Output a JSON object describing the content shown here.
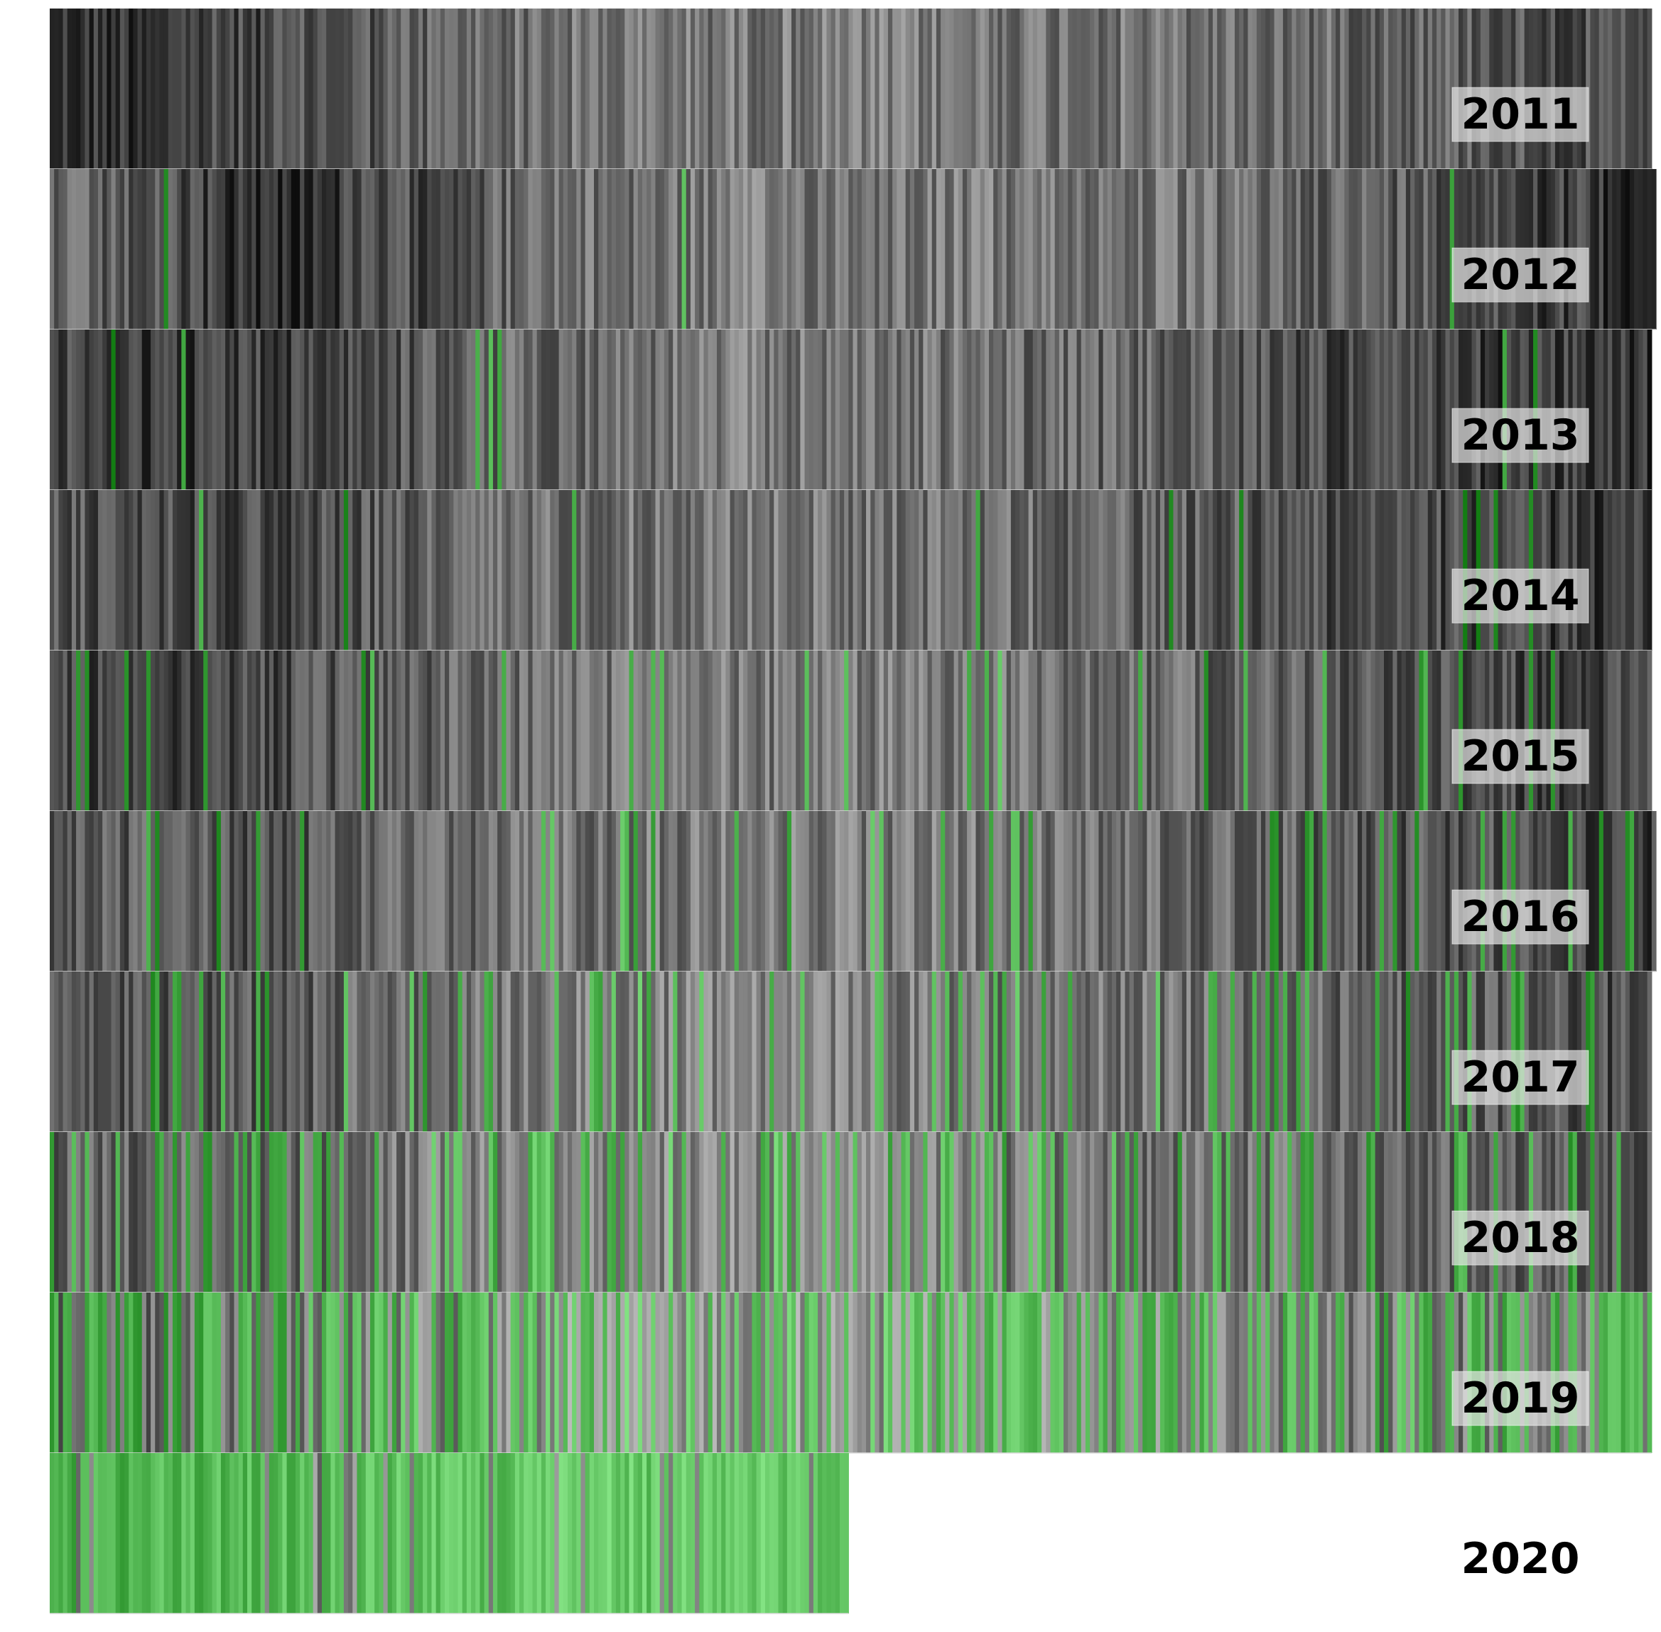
{
  "chart_data": {
    "type": "heatmap",
    "title": "",
    "xlabel": "",
    "ylabel": "",
    "rows": [
      "2011",
      "2012",
      "2013",
      "2014",
      "2015",
      "2016",
      "2017",
      "2018",
      "2019",
      "2020"
    ],
    "days_per_row": [
      365,
      366,
      365,
      365,
      365,
      366,
      365,
      365,
      365,
      182
    ],
    "colors": {
      "background": "#ffffff",
      "label_text": "#000000",
      "label_box": "#e6e6e6",
      "gray_dark": "#0d0d0d",
      "gray_light": "#d2d2d2",
      "green_dark": "#137d13",
      "green_light": "#90ee90"
    },
    "green_share_per_row": [
      0.0,
      0.003,
      0.01,
      0.03,
      0.06,
      0.08,
      0.14,
      0.25,
      0.48,
      0.85
    ],
    "darkness_profile": {
      "2011": [
        0.82,
        0.7,
        0.5,
        0.45,
        0.45,
        0.5,
        0.55,
        0.75
      ],
      "2012": [
        0.55,
        0.85,
        0.55,
        0.45,
        0.45,
        0.5,
        0.6,
        0.85
      ],
      "2013": [
        0.75,
        0.75,
        0.55,
        0.45,
        0.5,
        0.6,
        0.75,
        0.8
      ],
      "2014": [
        0.65,
        0.7,
        0.5,
        0.45,
        0.5,
        0.6,
        0.7,
        0.8
      ],
      "2015": [
        0.7,
        0.7,
        0.5,
        0.45,
        0.45,
        0.55,
        0.65,
        0.75
      ],
      "2016": [
        0.6,
        0.65,
        0.5,
        0.45,
        0.45,
        0.55,
        0.65,
        0.75
      ],
      "2017": [
        0.7,
        0.6,
        0.45,
        0.4,
        0.45,
        0.5,
        0.6,
        0.7
      ],
      "2018": [
        0.6,
        0.55,
        0.4,
        0.35,
        0.45,
        0.5,
        0.55,
        0.6
      ],
      "2019": [
        0.55,
        0.5,
        0.35,
        0.3,
        0.35,
        0.4,
        0.45,
        0.5
      ],
      "2020": [
        0.5,
        0.4,
        0.3,
        0.3
      ]
    }
  }
}
